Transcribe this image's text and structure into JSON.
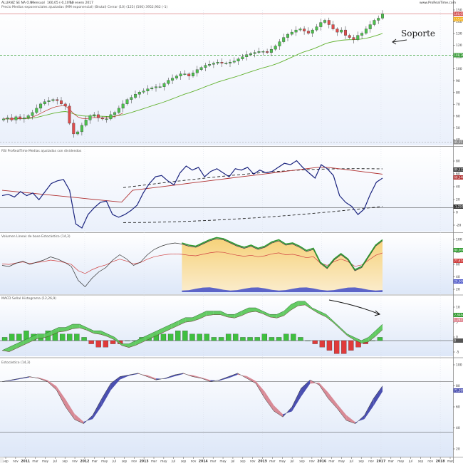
{
  "header": {
    "title": "ALLIANZ SE NA O.N.",
    "period": "Mensual",
    "quote": "160,05 (-0,10%)",
    "date": "10 enero 2017",
    "legend": "Precio  Medias exponenciales ajustadas  (MM exponencial)  (Brutal)  Cerrar (10)  (125)  (500)  3952,962 (-1)",
    "brand": "www.ProRealTime.com"
  },
  "annotation": {
    "text": "Soporte"
  },
  "panels": {
    "p2": "RSI  ProRealTime  Medias ajustadas con dividendos",
    "p3": "Volumen  Líneas de base  Estocástico (14,3)",
    "p4": "MACD  Señal  Histograma  (12,26,9)",
    "p5": "Estocástico (14,3)"
  },
  "chart_data": {
    "type": "line",
    "price_axis": {
      "ticks": [
        "150",
        "140",
        "130",
        "120",
        "110",
        "100",
        "90",
        "80",
        "70",
        "60",
        "50",
        "40"
      ],
      "last_price": "160,05",
      "marks": [
        "155,05",
        "155,57",
        "108,36",
        "45,55"
      ]
    },
    "p2_axis": {
      "ticks": [
        "80",
        "60",
        "40",
        "20",
        "0",
        "-20"
      ],
      "marks": [
        "80,532",
        "68,540",
        "-1,2505"
      ]
    },
    "p3_axis": {
      "ticks": [
        "100",
        "80",
        "60",
        "40",
        "20"
      ],
      "marks": [
        "80,000",
        "77,674",
        "20,000"
      ]
    },
    "p4_axis": {
      "ticks": [
        "10",
        "5",
        "0",
        "-5"
      ],
      "marks": [
        "2,8484",
        "1,7871",
        "0"
      ]
    },
    "p5_axis": {
      "ticks": [
        "100",
        "80",
        "60",
        "40",
        "20"
      ],
      "marks": [
        "71,389",
        "60,000"
      ]
    },
    "x_ticks": [
      "sep",
      "nov",
      "2011",
      "mar",
      "may",
      "jul",
      "sep",
      "nov",
      "2012",
      "mar",
      "may",
      "jul",
      "sep",
      "nov",
      "2013",
      "mar",
      "may",
      "jul",
      "sep",
      "nov",
      "2014",
      "mar",
      "may",
      "jul",
      "sep",
      "nov",
      "2015",
      "mar",
      "may",
      "jul",
      "sep",
      "nov",
      "2016",
      "mar",
      "may",
      "jul",
      "sep",
      "nov",
      "2017",
      "mar",
      "may",
      "jul",
      "sep",
      "nov",
      "2018",
      "mar"
    ],
    "price": [
      62,
      63,
      61,
      64,
      62,
      63,
      65,
      68,
      72,
      76,
      78,
      79,
      80,
      79,
      76,
      74,
      58,
      48,
      50,
      56,
      61,
      65,
      66,
      63,
      62,
      62,
      66,
      68,
      72,
      76,
      80,
      82,
      85,
      87,
      88,
      90,
      91,
      92,
      92,
      95,
      98,
      100,
      102,
      104,
      104,
      102,
      105,
      108,
      110,
      112,
      113,
      114,
      115,
      114,
      114,
      115,
      116,
      118,
      120,
      122,
      123,
      124,
      125,
      125,
      124,
      127,
      130,
      134,
      138,
      141,
      143,
      145,
      146,
      144,
      142,
      145,
      148,
      152,
      154,
      150,
      146,
      143,
      145,
      140,
      138,
      136,
      140,
      142,
      146,
      150,
      154,
      156,
      160
    ],
    "p2": [
      18,
      20,
      16,
      24,
      18,
      22,
      12,
      24,
      36,
      40,
      42,
      26,
      -24,
      -30,
      -10,
      0,
      8,
      10,
      -10,
      -14,
      -10,
      -4,
      4,
      22,
      36,
      46,
      48,
      40,
      34,
      52,
      62,
      56,
      60,
      46,
      54,
      58,
      52,
      46,
      58,
      56,
      60,
      50,
      56,
      52,
      54,
      60,
      66,
      64,
      70,
      60,
      52,
      44,
      64,
      58,
      48,
      18,
      8,
      2,
      -10,
      -2,
      20,
      38,
      44
    ],
    "p2_ma_red": [
      2,
      4,
      6,
      8,
      10,
      12,
      14,
      16,
      18,
      20,
      22,
      24,
      26,
      28,
      30,
      32,
      34,
      36,
      38,
      40,
      42,
      44,
      46,
      48,
      50,
      52,
      54,
      56,
      58,
      60,
      60,
      58,
      56,
      54,
      52,
      50
    ],
    "p3_k": [
      50,
      48,
      54,
      58,
      52,
      56,
      60,
      66,
      62,
      56,
      48,
      22,
      10,
      26,
      38,
      46,
      60,
      70,
      62,
      50,
      56,
      70,
      80,
      86,
      90,
      92,
      90,
      86,
      84,
      90,
      96,
      100,
      98,
      92,
      86,
      82,
      86,
      80,
      84,
      92,
      96,
      88,
      90,
      84,
      76,
      80,
      54,
      44,
      60,
      70,
      60,
      40,
      46,
      66,
      86,
      96
    ],
    "p4_macd": [
      -3,
      -2,
      -1,
      0,
      1,
      2,
      2,
      3,
      4,
      4,
      5,
      5,
      4,
      3,
      3,
      2,
      1,
      -1,
      -1,
      0,
      1,
      2,
      3,
      4,
      5,
      6,
      7,
      7,
      8,
      9,
      9,
      9,
      8,
      8,
      9,
      10,
      10,
      9,
      8,
      8,
      9,
      11,
      12,
      12,
      10,
      9,
      8,
      6,
      4,
      2,
      1,
      0,
      1,
      3,
      5
    ],
    "p4_hist": [
      1,
      2,
      2,
      3,
      2,
      2,
      3,
      3,
      2,
      2,
      2,
      1,
      -1,
      -2,
      -2,
      -1,
      -1,
      0,
      0,
      1,
      1,
      2,
      2,
      2,
      3,
      3,
      2,
      2,
      2,
      1,
      1,
      2,
      2,
      1,
      1,
      1,
      2,
      1,
      1,
      2,
      2,
      1,
      0,
      -1,
      -2,
      -3,
      -4,
      -4,
      -3,
      -2,
      -1,
      0,
      1
    ],
    "p5_k": [
      80,
      82,
      84,
      86,
      84,
      80,
      70,
      50,
      35,
      30,
      40,
      60,
      78,
      86,
      88,
      90,
      86,
      82,
      84,
      88,
      90,
      86,
      84,
      80,
      82,
      86,
      90,
      84,
      78,
      60,
      45,
      38,
      50,
      72,
      82,
      76,
      60,
      48,
      34,
      30,
      40,
      60,
      75
    ]
  }
}
